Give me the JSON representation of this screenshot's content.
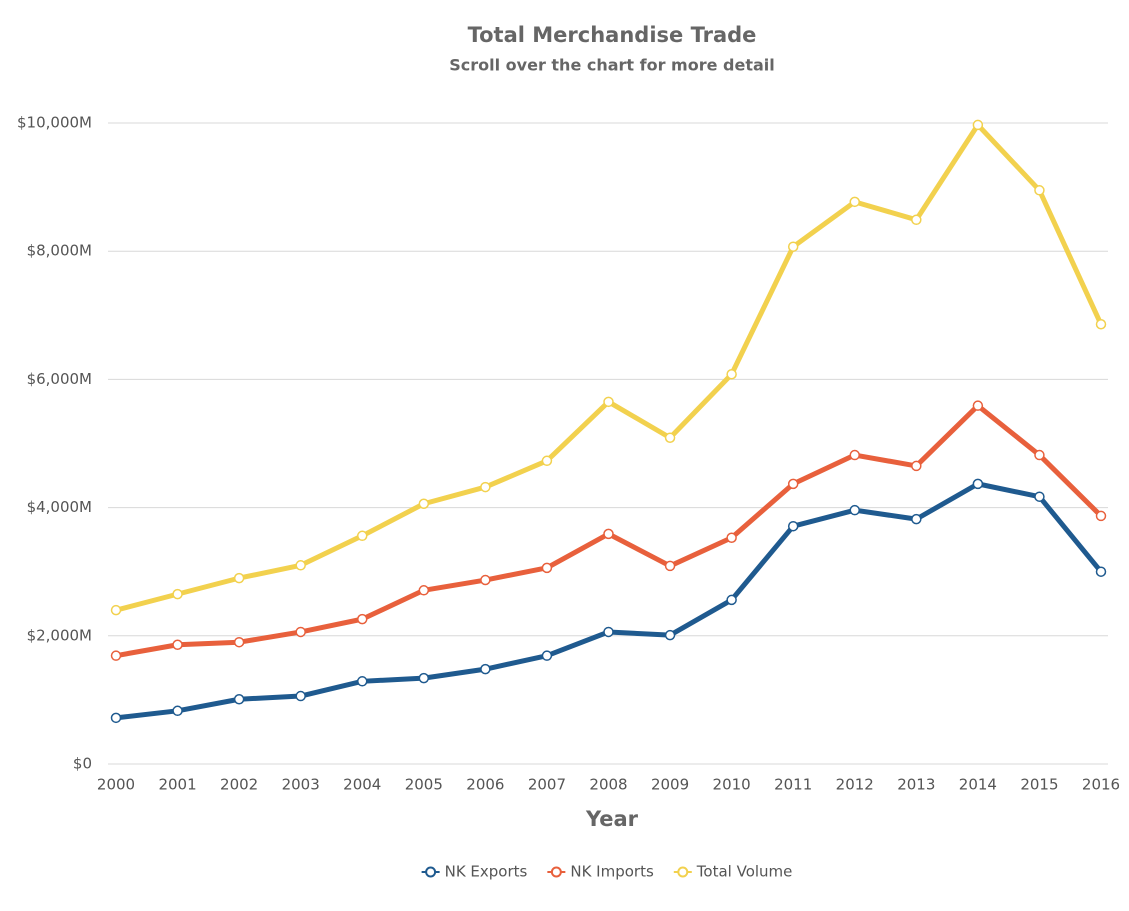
{
  "chart_data": {
    "type": "line",
    "title": "Total Merchandise Trade",
    "subtitle": "Scroll over the chart for more detail",
    "x_label": "Year",
    "categories": [
      "2000",
      "2001",
      "2002",
      "2003",
      "2004",
      "2005",
      "2006",
      "2007",
      "2008",
      "2009",
      "2010",
      "2011",
      "2012",
      "2013",
      "2014",
      "2015",
      "2016"
    ],
    "series": [
      {
        "name": "NK Exports",
        "color": "#1f5a8f",
        "values": [
          720,
          830,
          1010,
          1060,
          1290,
          1340,
          1480,
          1690,
          2060,
          2010,
          2560,
          3710,
          3960,
          3820,
          4370,
          4170,
          3000
        ]
      },
      {
        "name": "NK Imports",
        "color": "#e8603c",
        "values": [
          1690,
          1860,
          1900,
          2060,
          2260,
          2710,
          2870,
          3060,
          3590,
          3090,
          3530,
          4370,
          4820,
          4650,
          5590,
          4820,
          3870
        ]
      },
      {
        "name": "Total Volume",
        "color": "#f2d14e",
        "values": [
          2400,
          2650,
          2900,
          3100,
          3560,
          4060,
          4320,
          4730,
          5650,
          5090,
          6080,
          8070,
          8770,
          8490,
          9970,
          8950,
          6860
        ]
      }
    ],
    "ylim": [
      0,
      10000
    ],
    "yticks": [
      {
        "value": 0,
        "label": "$0"
      },
      {
        "value": 2000,
        "label": "$2,000M"
      },
      {
        "value": 4000,
        "label": "$4,000M"
      },
      {
        "value": 6000,
        "label": "$6,000M"
      },
      {
        "value": 8000,
        "label": "$8,000M"
      },
      {
        "value": 10000,
        "label": "$10,000M"
      }
    ],
    "grid": true,
    "legend": "bottom"
  }
}
